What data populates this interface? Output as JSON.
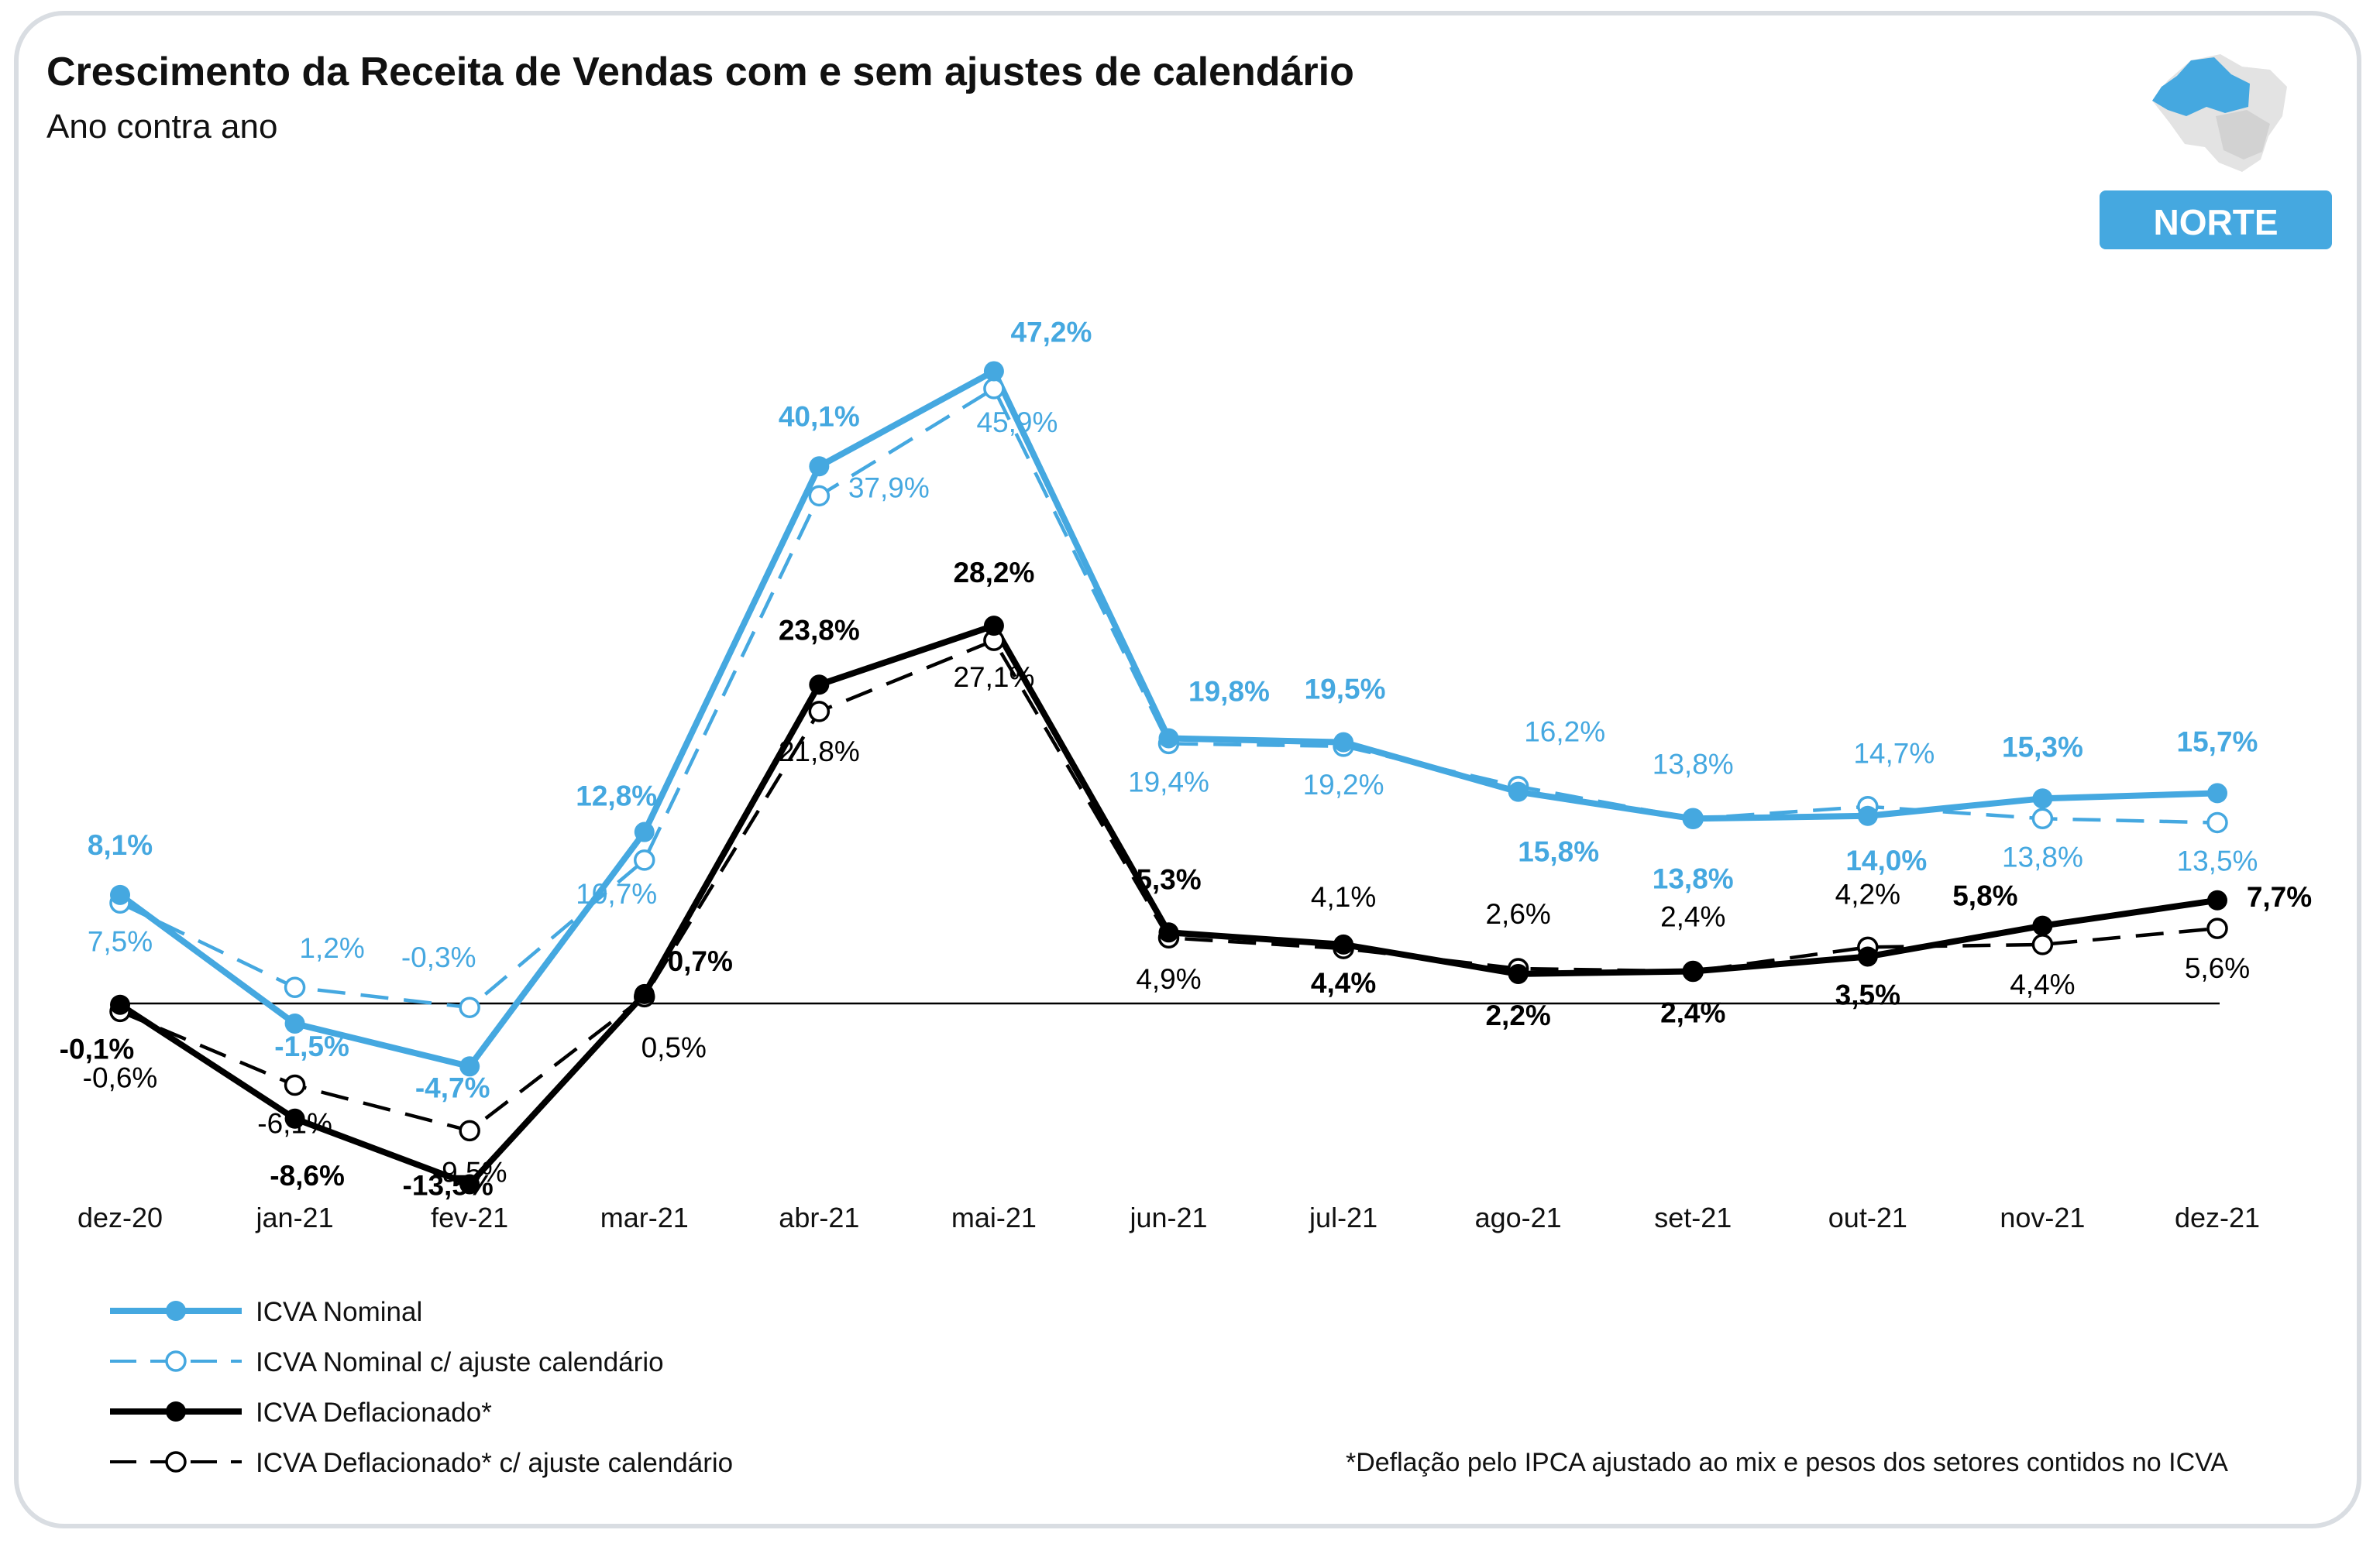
{
  "chart_data": {
    "type": "line",
    "title": "Crescimento da Receita de Vendas com e sem ajustes de calendário",
    "subtitle": "Ano contra ano",
    "region_badge": "NORTE",
    "footnote": "*Deflação pelo IPCA ajustado ao mix e pesos dos setores contidos no ICVA",
    "categories": [
      "dez-20",
      "jan-21",
      "fev-21",
      "mar-21",
      "abr-21",
      "mai-21",
      "jun-21",
      "jul-21",
      "ago-21",
      "set-21",
      "out-21",
      "nov-21",
      "dez-21"
    ],
    "ylim": [
      -17,
      52
    ],
    "series": [
      {
        "name": "ICVA Nominal",
        "color": "#45a8e0",
        "style": "solid-filled",
        "values": [
          8.1,
          -1.5,
          -4.7,
          12.8,
          40.1,
          47.2,
          19.8,
          19.5,
          15.8,
          13.8,
          14.0,
          15.3,
          15.7
        ],
        "labels": [
          "8,1%",
          "-1,5%",
          "-4,7%",
          "12,8%",
          "40,1%",
          "47,2%",
          "19,8%",
          "19,5%",
          "15,8%",
          "13,8%",
          "14,0%",
          "15,3%",
          "15,7%"
        ]
      },
      {
        "name": "ICVA Nominal c/ ajuste calendário",
        "color": "#45a8e0",
        "style": "dashed-open",
        "values": [
          7.5,
          1.2,
          -0.3,
          10.7,
          37.9,
          45.9,
          19.4,
          19.2,
          16.2,
          13.8,
          14.7,
          13.8,
          13.5
        ],
        "labels": [
          "7,5%",
          "1,2%",
          "-0,3%",
          "10,7%",
          "37,9%",
          "45,9%",
          "19,4%",
          "19,2%",
          "16,2%",
          "13,8%",
          "14,7%",
          "13,8%",
          "13,5%"
        ]
      },
      {
        "name": "ICVA Deflacionado*",
        "color": "#000000",
        "style": "solid-filled",
        "values": [
          -0.1,
          -8.6,
          -13.5,
          0.7,
          23.8,
          28.2,
          5.3,
          4.4,
          2.2,
          2.4,
          3.5,
          5.8,
          7.7
        ],
        "labels": [
          "-0,1%",
          "-8,6%",
          "-13,5%",
          "0,7%",
          "23,8%",
          "28,2%",
          "5,3%",
          "4,4%",
          "2,2%",
          "2,4%",
          "3,5%",
          "5,8%",
          "7,7%"
        ]
      },
      {
        "name": "ICVA Deflacionado* c/ ajuste calendário",
        "color": "#000000",
        "style": "dashed-open",
        "values": [
          -0.6,
          -6.1,
          -9.5,
          0.5,
          21.8,
          27.1,
          4.9,
          4.1,
          2.6,
          2.4,
          4.2,
          4.4,
          5.6
        ],
        "labels": [
          "-0,6%",
          "-6,1%",
          "-9,5%",
          "0,5%",
          "21,8%",
          "27,1%",
          "4,9%",
          "4,1%",
          "2,6%",
          "2,4%",
          "4,2%",
          "4,4%",
          "5,6%"
        ]
      }
    ]
  }
}
